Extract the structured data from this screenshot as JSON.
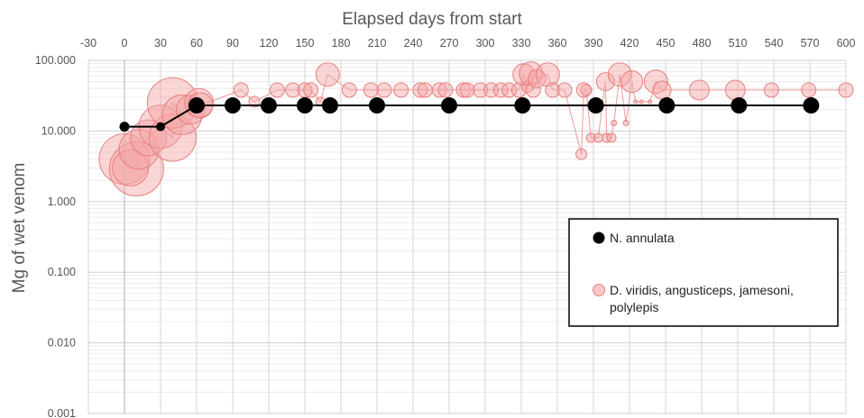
{
  "chart_data": {
    "type": "scatter",
    "xlabel": "Elapsed days from start",
    "ylabel": "Mg of wet venom",
    "xlim": [
      -30,
      600
    ],
    "ylim": [
      0.001,
      100
    ],
    "x_ticks": [
      -30,
      0,
      30,
      60,
      90,
      120,
      150,
      180,
      210,
      240,
      270,
      300,
      330,
      360,
      390,
      420,
      450,
      480,
      510,
      540,
      570,
      600
    ],
    "y_ticks": [
      100,
      10,
      1,
      0.1,
      0.01,
      0.001
    ],
    "y_tick_labels": [
      "100.000",
      "10.000",
      "1.000",
      "0.100",
      "0.010",
      "0.001"
    ],
    "y_scale": "log",
    "grid": true,
    "legend_position": "right",
    "colors": {
      "series1": "#000000",
      "series2": "#f4a3a3",
      "series2_stroke": "#e88080"
    },
    "series": [
      {
        "name": "N. annulata",
        "marker": "circle-filled",
        "line": true,
        "x": [
          0,
          30,
          60,
          90,
          120,
          150,
          171,
          210,
          270,
          331,
          392,
          451,
          511,
          571
        ],
        "y": [
          11.5,
          11.5,
          23,
          23,
          23,
          23,
          23,
          23,
          23,
          23,
          23,
          23,
          23,
          23
        ]
      },
      {
        "name": "D. viridis, angusticeps, jamesoni, polylepis",
        "marker": "bubble",
        "line": true,
        "points": [
          {
            "x": 0,
            "y": 4,
            "r": 28
          },
          {
            "x": 10,
            "y": 2.9,
            "r": 30
          },
          {
            "x": 5,
            "y": 3,
            "r": 20
          },
          {
            "x": 12,
            "y": 5.5,
            "r": 22
          },
          {
            "x": 20,
            "y": 8,
            "r": 20
          },
          {
            "x": 30,
            "y": 11.5,
            "r": 24
          },
          {
            "x": 40,
            "y": 8,
            "r": 26
          },
          {
            "x": 40,
            "y": 25,
            "r": 28
          },
          {
            "x": 48,
            "y": 17,
            "r": 22
          },
          {
            "x": 55,
            "y": 20,
            "r": 16
          },
          {
            "x": 62,
            "y": 25,
            "r": 16
          },
          {
            "x": 63,
            "y": 23,
            "r": 14
          },
          {
            "x": 97,
            "y": 38,
            "r": 8
          },
          {
            "x": 108,
            "y": 26,
            "r": 6
          },
          {
            "x": 127,
            "y": 38,
            "r": 8
          },
          {
            "x": 140,
            "y": 38,
            "r": 8
          },
          {
            "x": 150,
            "y": 38,
            "r": 8
          },
          {
            "x": 155,
            "y": 38,
            "r": 8
          },
          {
            "x": 163,
            "y": 26,
            "r": 5
          },
          {
            "x": 169,
            "y": 63,
            "r": 13
          },
          {
            "x": 187,
            "y": 38,
            "r": 8
          },
          {
            "x": 205,
            "y": 38,
            "r": 8
          },
          {
            "x": 216,
            "y": 38,
            "r": 8
          },
          {
            "x": 230,
            "y": 38,
            "r": 8
          },
          {
            "x": 246,
            "y": 38,
            "r": 8
          },
          {
            "x": 250,
            "y": 38,
            "r": 8
          },
          {
            "x": 262,
            "y": 38,
            "r": 8
          },
          {
            "x": 267,
            "y": 38,
            "r": 8
          },
          {
            "x": 282,
            "y": 38,
            "r": 8
          },
          {
            "x": 285,
            "y": 38,
            "r": 8
          },
          {
            "x": 296,
            "y": 38,
            "r": 8
          },
          {
            "x": 305,
            "y": 38,
            "r": 8
          },
          {
            "x": 313,
            "y": 38,
            "r": 8
          },
          {
            "x": 320,
            "y": 38,
            "r": 8
          },
          {
            "x": 328,
            "y": 38,
            "r": 8
          },
          {
            "x": 332,
            "y": 63,
            "r": 12
          },
          {
            "x": 335,
            "y": 42,
            "r": 6
          },
          {
            "x": 338,
            "y": 65,
            "r": 13
          },
          {
            "x": 340,
            "y": 38,
            "r": 8
          },
          {
            "x": 343,
            "y": 55,
            "r": 10
          },
          {
            "x": 352,
            "y": 63,
            "r": 13
          },
          {
            "x": 356,
            "y": 38,
            "r": 8
          },
          {
            "x": 366,
            "y": 38,
            "r": 8
          },
          {
            "x": 380,
            "y": 4.7,
            "r": 6
          },
          {
            "x": 382,
            "y": 38,
            "r": 8
          },
          {
            "x": 384,
            "y": 38,
            "r": 6
          },
          {
            "x": 388,
            "y": 8,
            "r": 5
          },
          {
            "x": 394,
            "y": 8,
            "r": 5
          },
          {
            "x": 400,
            "y": 50,
            "r": 10
          },
          {
            "x": 401,
            "y": 8,
            "r": 5
          },
          {
            "x": 405,
            "y": 8,
            "r": 5
          },
          {
            "x": 407,
            "y": 13,
            "r": 3
          },
          {
            "x": 412,
            "y": 63,
            "r": 13
          },
          {
            "x": 417,
            "y": 13,
            "r": 3
          },
          {
            "x": 422,
            "y": 50,
            "r": 12
          },
          {
            "x": 425,
            "y": 26,
            "r": 2
          },
          {
            "x": 430,
            "y": 26,
            "r": 2
          },
          {
            "x": 437,
            "y": 26,
            "r": 2
          },
          {
            "x": 442,
            "y": 50,
            "r": 13
          },
          {
            "x": 447,
            "y": 38,
            "r": 10
          },
          {
            "x": 478,
            "y": 38,
            "r": 11
          },
          {
            "x": 508,
            "y": 38,
            "r": 11
          },
          {
            "x": 538,
            "y": 38,
            "r": 8
          },
          {
            "x": 569,
            "y": 38,
            "r": 8
          },
          {
            "x": 600,
            "y": 38,
            "r": 8
          }
        ]
      }
    ]
  }
}
